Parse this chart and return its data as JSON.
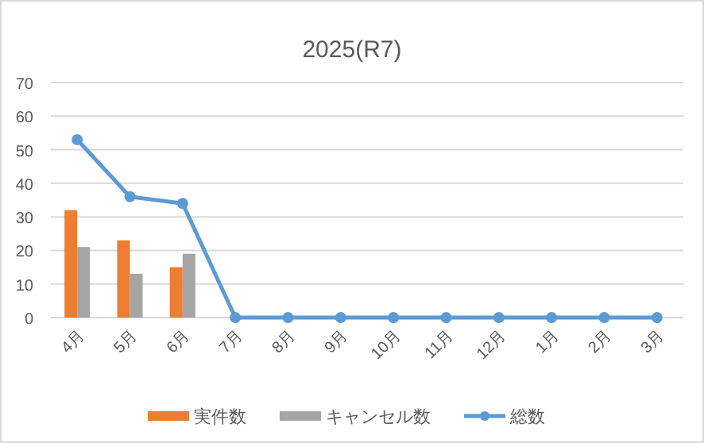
{
  "chart_data": {
    "type": "bar",
    "title": "2025(R7)",
    "categories": [
      "4月",
      "5月",
      "6月",
      "7月",
      "8月",
      "9月",
      "10月",
      "11月",
      "12月",
      "1月",
      "2月",
      "3月"
    ],
    "series": [
      {
        "name": "実件数",
        "color": "#ed7d31",
        "values": [
          32,
          23,
          15,
          null,
          null,
          null,
          null,
          null,
          null,
          null,
          null,
          null
        ]
      },
      {
        "name": "キャンセル数",
        "color": "#a5a5a5",
        "values": [
          21,
          13,
          19,
          null,
          null,
          null,
          null,
          null,
          null,
          null,
          null,
          null
        ]
      },
      {
        "name": "総数",
        "type": "line",
        "color": "#5b9bd5",
        "marker": "circle",
        "values": [
          53,
          36,
          34,
          0,
          0,
          0,
          0,
          0,
          0,
          0,
          0,
          0
        ]
      }
    ],
    "ylim": [
      0,
      70
    ],
    "yticks": [
      0,
      10,
      20,
      30,
      40,
      50,
      60,
      70
    ],
    "grid": "y",
    "legend": "bottom"
  }
}
